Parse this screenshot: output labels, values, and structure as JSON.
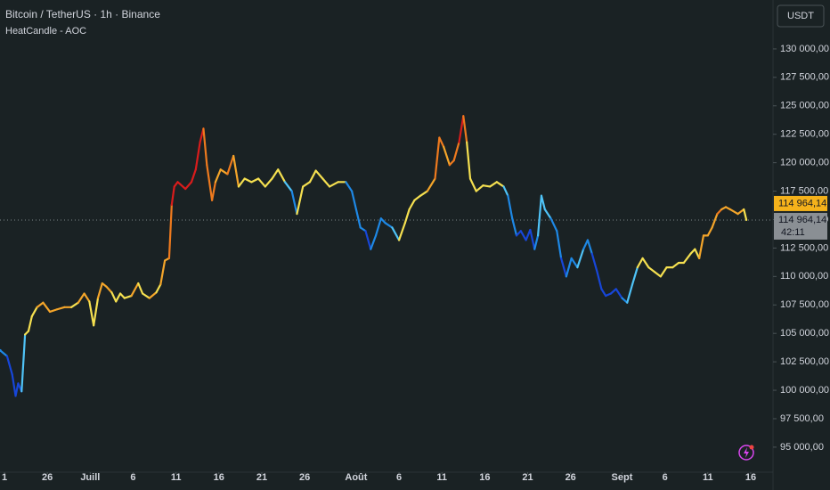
{
  "header": {
    "symbol": "Bitcoin / TetherUS · 1h · Binance",
    "indicator": "HeatCandle - AOC",
    "currency_button": "USDT"
  },
  "chart_data": {
    "type": "candle-line",
    "x": [
      -0.5,
      0.3,
      0.9,
      1.3,
      1.6,
      2.0,
      2.4,
      2.8,
      3.2,
      3.8,
      4.5,
      5.3,
      6.1,
      7.0,
      7.8,
      8.6,
      9.3,
      9.9,
      10.4,
      10.9,
      11.4,
      11.9,
      12.5,
      13.0,
      13.5,
      14.0,
      14.8,
      15.6,
      16.1,
      16.9,
      17.7,
      18.2,
      18.7,
      19.2,
      19.5,
      19.8,
      20.2,
      21.1,
      21.8,
      22.3,
      22.8,
      23.2,
      23.6,
      24.2,
      24.6,
      25.2,
      26.0,
      26.7,
      27.3,
      28.0,
      28.8,
      29.6,
      30.4,
      31.2,
      31.9,
      32.7,
      33.5,
      34.1,
      34.8,
      35.6,
      36.3,
      37.1,
      37.9,
      38.9,
      39.8,
      40.5,
      41.0,
      41.5,
      42.1,
      42.7,
      43.3,
      43.9,
      44.4,
      45.2,
      46.0,
      46.7,
      47.2,
      47.8,
      48.5,
      49.3,
      50.2,
      50.7,
      51.2,
      51.9,
      52.4,
      53.0,
      53.5,
      53.9,
      54.3,
      55.0,
      55.8,
      56.6,
      57.4,
      58.2,
      58.7,
      59.2,
      59.7,
      60.2,
      60.8,
      61.3,
      61.8,
      62.2,
      62.6,
      63.0,
      63.7,
      64.4,
      64.9,
      65.5,
      66.1,
      66.8,
      67.5,
      68.0,
      68.5,
      69.1,
      69.6,
      70.1,
      70.7,
      71.3,
      72.0,
      72.6,
      73.2,
      73.8,
      74.4,
      75.1,
      75.8,
      76.5,
      77.2,
      77.9,
      78.6,
      79.2,
      80.0,
      80.5,
      81.0,
      81.5,
      82.0,
      82.5,
      83.1,
      83.6,
      84.1,
      84.6,
      85.5,
      86.2,
      86.5
    ],
    "series": [
      {
        "values": [
          103500,
          103000,
          101400,
          99500,
          100600,
          99900,
          104900,
          105200,
          106500,
          107300,
          107700,
          106900,
          107100,
          107300,
          107300,
          107700,
          108500,
          107800,
          105700,
          108100,
          109400,
          109100,
          108600,
          107800,
          108500,
          108100,
          108300,
          109400,
          108500,
          108100,
          108600,
          109300,
          111400,
          111600,
          116300,
          117900,
          118300,
          117700,
          118300,
          119400,
          121800,
          123000,
          119800,
          116700,
          118300,
          119400,
          119000,
          120600,
          117900,
          118600,
          118300,
          118600,
          117900,
          118600,
          119400,
          118300,
          117500,
          115500,
          117900,
          118300,
          119300,
          118600,
          117900,
          118300,
          118300,
          117500,
          115900,
          114300,
          114000,
          112400,
          113600,
          115100,
          114700,
          114300,
          113200,
          114700,
          115900,
          116700,
          117100,
          117500,
          118600,
          122200,
          121400,
          119800,
          120200,
          121800,
          124100,
          121800,
          118600,
          117500,
          118000,
          117900,
          118300,
          117900,
          117100,
          115100,
          113600,
          114000,
          113200,
          114100,
          112400,
          113600,
          117100,
          115900,
          115100,
          114000,
          111600,
          110000,
          111600,
          110800,
          112400,
          113200,
          112000,
          110400,
          108900,
          108300,
          108500,
          108900,
          108100,
          107700,
          109300,
          110800,
          111600,
          110800,
          110400,
          110000,
          110800,
          110800,
          111200,
          111200,
          112000,
          112400,
          111600,
          113600,
          113600,
          114300,
          115500,
          115900,
          116100,
          115900,
          115500,
          115900,
          114964.14
        ],
        "colors": [
          "#1e88e5",
          "#1e88e5",
          "#1746d8",
          "#1746d8",
          "#1746d8",
          "#1746d8",
          "#4fc3f7",
          "#f5e050",
          "#f5e050",
          "#f5e050",
          "#f4a52a",
          "#f4a52a",
          "#f4a52a",
          "#f4a52a",
          "#f4a52a",
          "#f5e050",
          "#f4a52a",
          "#f4a52a",
          "#f5e050",
          "#f5e050",
          "#f4a52a",
          "#f4a52a",
          "#f4a52a",
          "#f5e050",
          "#f5e050",
          "#f5e050",
          "#f5e050",
          "#f4a52a",
          "#f5e050",
          "#f5e050",
          "#f4a52a",
          "#f5e050",
          "#f4a52a",
          "#f4a52a",
          "#ee7a1e",
          "#d91c1c",
          "#d91c1c",
          "#d91c1c",
          "#d91c1c",
          "#d91c1c",
          "#d91c1c",
          "#d91c1c",
          "#ee7a1e",
          "#ee7a1e",
          "#ee7a1e",
          "#f4a52a",
          "#f4a52a",
          "#ee7a1e",
          "#f4a52a",
          "#f5e050",
          "#f5e050",
          "#f5e050",
          "#f5e050",
          "#f5e050",
          "#f5e050",
          "#f5e050",
          "#4fc3f7",
          "#1e88e5",
          "#f5e050",
          "#f5e050",
          "#f5e050",
          "#f5e050",
          "#f5e050",
          "#f5e050",
          "#f5e050",
          "#1e88e5",
          "#1e88e5",
          "#1e88e5",
          "#1e88e5",
          "#1746d8",
          "#1e88e5",
          "#1e88e5",
          "#1e88e5",
          "#1e88e5",
          "#4fc3f7",
          "#f5e050",
          "#f5e050",
          "#f5e050",
          "#f5e050",
          "#f5e050",
          "#f4a52a",
          "#ee7a1e",
          "#ee7a1e",
          "#f4a52a",
          "#ee7a1e",
          "#ee7a1e",
          "#d91c1c",
          "#ee7a1e",
          "#f5e050",
          "#f5e050",
          "#f5e050",
          "#f5e050",
          "#f5e050",
          "#f5e050",
          "#4fc3f7",
          "#1e88e5",
          "#1e88e5",
          "#1746d8",
          "#1746d8",
          "#1746d8",
          "#1746d8",
          "#1e88e5",
          "#4fc3f7",
          "#4fc3f7",
          "#4fc3f7",
          "#1e88e5",
          "#1e88e5",
          "#1746d8",
          "#1e88e5",
          "#1e88e5",
          "#4fc3f7",
          "#1e88e5",
          "#1e88e5",
          "#1746d8",
          "#1746d8",
          "#1746d8",
          "#1746d8",
          "#1746d8",
          "#1746d8",
          "#1e88e5",
          "#4fc3f7",
          "#4fc3f7",
          "#f5e050",
          "#f5e050",
          "#f5e050",
          "#f5e050",
          "#f5e050",
          "#f5e050",
          "#f5e050",
          "#f5e050",
          "#f5e050",
          "#f5e050",
          "#f5e050",
          "#f4a52a",
          "#f4a52a",
          "#f4a52a",
          "#f4a52a",
          "#ee7a1e",
          "#f4a52a",
          "#f4a52a",
          "#f4a52a",
          "#f4a52a",
          "#f5e050"
        ]
      }
    ],
    "xlim": [
      -0.52,
      89.6
    ],
    "ylim": [
      92800,
      134300
    ],
    "xticks": [
      {
        "value": 0,
        "label": "1"
      },
      {
        "value": 5,
        "label": "26"
      },
      {
        "value": 10,
        "label": "Juill"
      },
      {
        "value": 15,
        "label": "6"
      },
      {
        "value": 20,
        "label": "11"
      },
      {
        "value": 25,
        "label": "16"
      },
      {
        "value": 30,
        "label": "21"
      },
      {
        "value": 35,
        "label": "26"
      },
      {
        "value": 41,
        "label": "Août"
      },
      {
        "value": 46,
        "label": "6"
      },
      {
        "value": 51,
        "label": "11"
      },
      {
        "value": 56,
        "label": "16"
      },
      {
        "value": 61,
        "label": "21"
      },
      {
        "value": 66,
        "label": "26"
      },
      {
        "value": 72,
        "label": "Sept"
      },
      {
        "value": 77,
        "label": "6"
      },
      {
        "value": 82,
        "label": "11"
      },
      {
        "value": 87,
        "label": "16"
      }
    ],
    "yticks": [
      {
        "value": 95000,
        "label": "95 000,00"
      },
      {
        "value": 97500,
        "label": "97 500,00"
      },
      {
        "value": 100000,
        "label": "100 000,00"
      },
      {
        "value": 102500,
        "label": "102 500,00"
      },
      {
        "value": 105000,
        "label": "105 000,00"
      },
      {
        "value": 107500,
        "label": "107 500,00"
      },
      {
        "value": 110000,
        "label": "110 000,00"
      },
      {
        "value": 112500,
        "label": "112 500,00"
      },
      {
        "value": 115000,
        "label": "115 000,00"
      },
      {
        "value": 117500,
        "label": "117 500,00"
      },
      {
        "value": 120000,
        "label": "120 000,00"
      },
      {
        "value": 122500,
        "label": "122 500,00"
      },
      {
        "value": 125000,
        "label": "125 000,00"
      },
      {
        "value": 127500,
        "label": "127 500,00"
      },
      {
        "value": 130000,
        "label": "130 000,00"
      }
    ],
    "grid": false,
    "last_price": {
      "value": 114964.14,
      "label": "114 964,14"
    },
    "countdown": "42:11"
  }
}
